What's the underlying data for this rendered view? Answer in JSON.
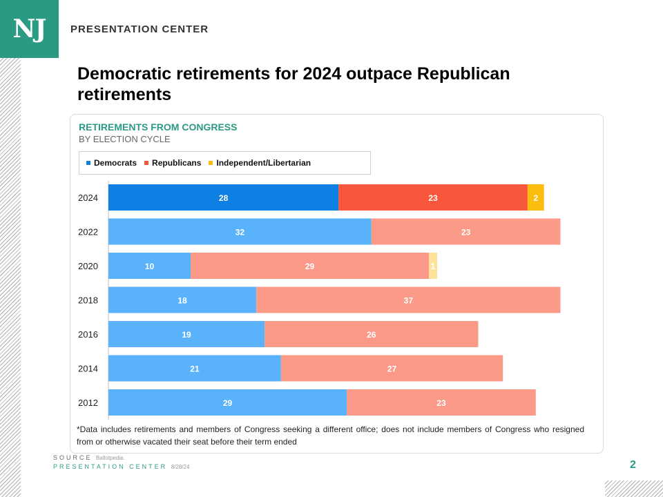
{
  "brand": {
    "logo": "NJ",
    "name": "PRESENTATION CENTER"
  },
  "headline": "Democratic retirements for 2024 outpace Republican retirements",
  "colors": {
    "accent": "#2b9a82",
    "dem_highlight": "#0e80e3",
    "rep_highlight": "#f9573c",
    "ind_highlight": "#fbbd10",
    "dem": "#5ab2fb",
    "rep": "#fb9a88",
    "ind": "#fde29a"
  },
  "chart_data": {
    "type": "bar",
    "orientation": "horizontal",
    "stacked": true,
    "title": "RETIREMENTS FROM CONGRESS",
    "subtitle": "BY ELECTION CYCLE",
    "categories": [
      "2024",
      "2022",
      "2020",
      "2018",
      "2016",
      "2014",
      "2012"
    ],
    "series": [
      {
        "name": "Democrats",
        "values": [
          28,
          32,
          10,
          18,
          19,
          21,
          29
        ]
      },
      {
        "name": "Republicans",
        "values": [
          23,
          23,
          29,
          37,
          26,
          27,
          23
        ]
      },
      {
        "name": "Independent/Libertarian",
        "values": [
          2,
          0,
          1,
          0,
          0,
          0,
          0
        ]
      }
    ],
    "highlight_category": "2024",
    "legend_position": "top-left",
    "grid": false
  },
  "footnote": "*Data includes retirements and members of Congress seeking a different office; does not include members of Congress who resigned from or otherwise vacated their seat before their term ended",
  "source": {
    "label": "SOURCE",
    "value": "Ballotpedia."
  },
  "presentation": {
    "label": "PRESENTATION CENTER",
    "date": "8/28/24"
  },
  "page_number": "2"
}
